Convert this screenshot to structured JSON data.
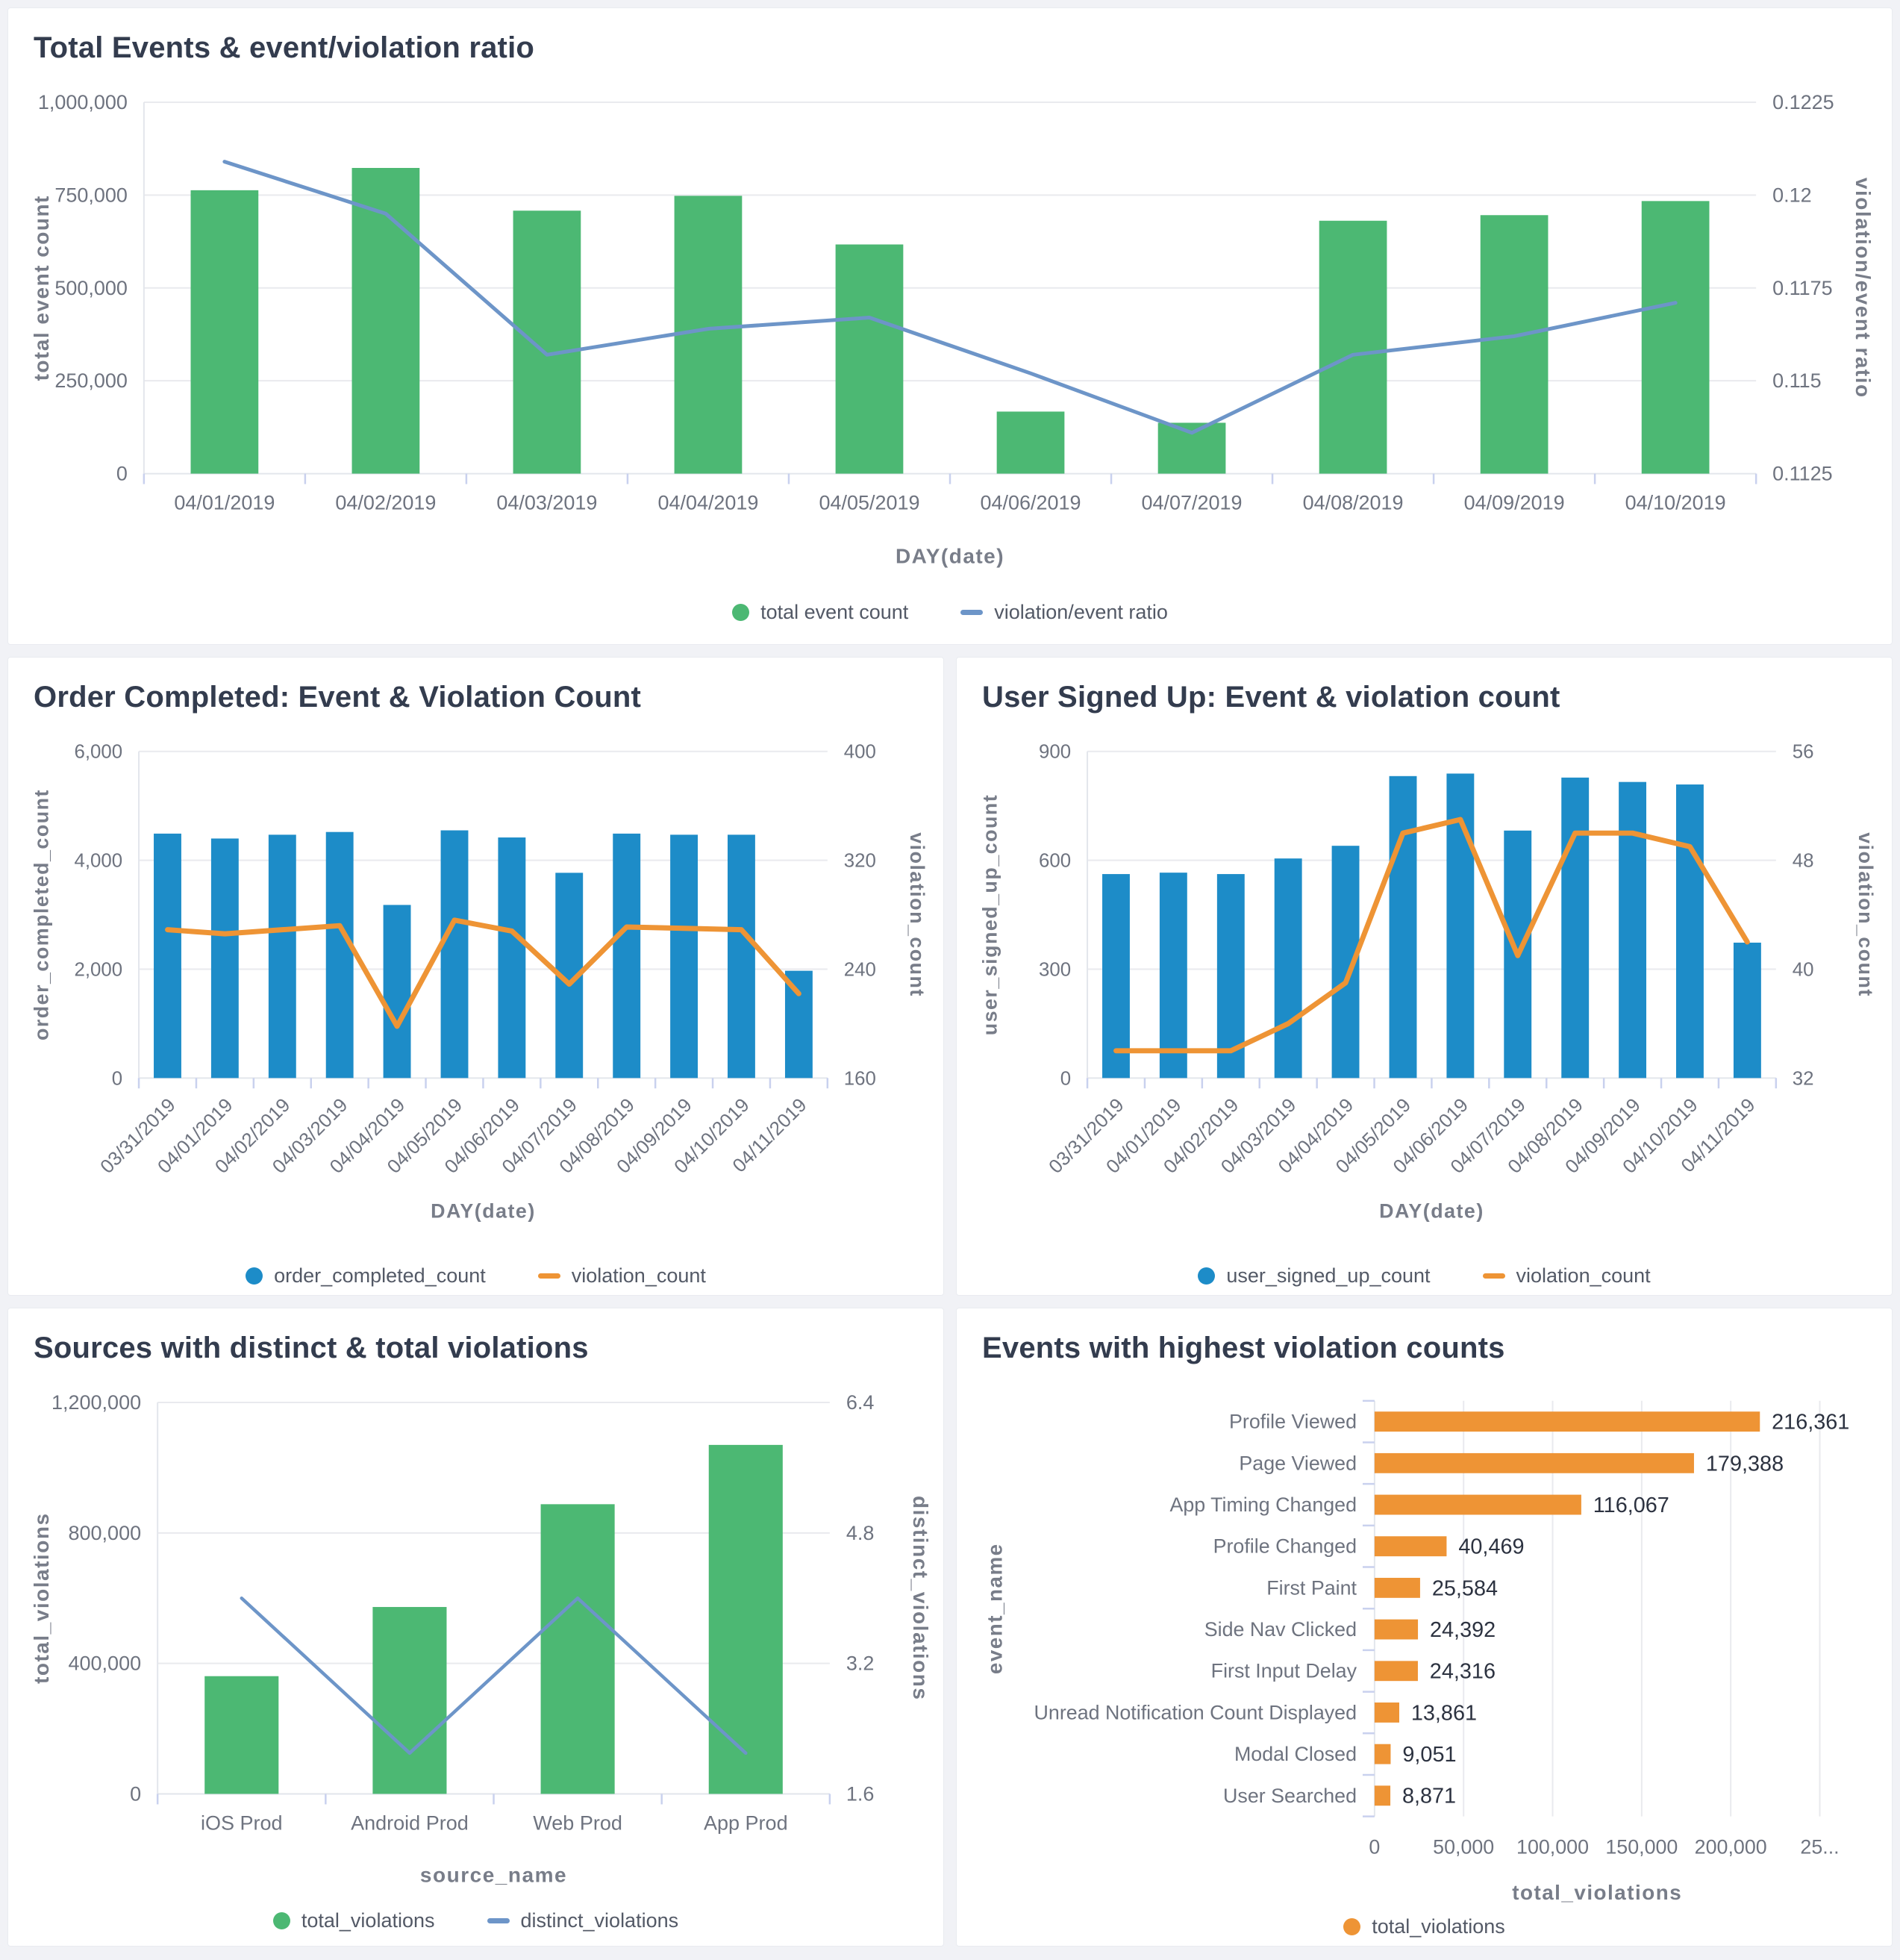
{
  "colors": {
    "green": "#4cb873",
    "blue_bar": "#1d8cc8",
    "orange": "#ee9435",
    "steel_line": "#6d95c8",
    "title": "#333c4e",
    "tick": "#6e737f",
    "axis_title": "#787d89",
    "grid": "#e9eaee",
    "axis_line": "#e3e6ec",
    "tick_mark": "#c9d1ee",
    "value_label": "#2c3240",
    "legend_text": "#535966",
    "panel_bg": "#ffffff",
    "page_bg": "#f1f2f6"
  },
  "chart_data": [
    {
      "type": "bar+line",
      "title": "Total Events & event/violation ratio",
      "xlabel": "DAY(date)",
      "categories": [
        "04/01/2019",
        "04/02/2019",
        "04/03/2019",
        "04/04/2019",
        "04/05/2019",
        "04/06/2019",
        "04/07/2019",
        "04/08/2019",
        "04/09/2019",
        "04/10/2019"
      ],
      "bar": {
        "name": "total event count",
        "color_key": "green",
        "values": [
          763000,
          823000,
          708000,
          748000,
          617000,
          167000,
          137000,
          681000,
          696000,
          734000
        ],
        "axis": {
          "label": "total event count",
          "ticks": [
            0,
            250000,
            500000,
            750000,
            1000000
          ],
          "max": 1000000,
          "format": "number"
        }
      },
      "line": {
        "name": "violation/event ratio",
        "color_key": "steel_line",
        "values": [
          0.1209,
          0.1195,
          0.1157,
          0.1164,
          0.1167,
          0.1152,
          0.1136,
          0.1157,
          0.1162,
          0.1171
        ],
        "axis": {
          "label": "violation/event ratio",
          "ticks": [
            0.1125,
            0.115,
            0.1175,
            0.12,
            0.1225
          ],
          "format": "raw"
        }
      },
      "rotate_x_labels": false,
      "grid": true,
      "legend_position": "bottom"
    },
    {
      "type": "bar+line",
      "title": "Order Completed: Event & Violation Count",
      "xlabel": "DAY(date)",
      "categories": [
        "03/31/2019",
        "04/01/2019",
        "04/02/2019",
        "04/03/2019",
        "04/04/2019",
        "04/05/2019",
        "04/06/2019",
        "04/07/2019",
        "04/08/2019",
        "04/09/2019",
        "04/10/2019",
        "04/11/2019"
      ],
      "bar": {
        "name": "order_completed_count",
        "color_key": "blue_bar",
        "values": [
          4490,
          4400,
          4470,
          4520,
          3180,
          4550,
          4420,
          3770,
          4490,
          4470,
          4470,
          1970
        ],
        "axis": {
          "label": "order_completed_count",
          "ticks": [
            0,
            2000,
            4000,
            6000
          ],
          "max": 6000,
          "format": "number"
        }
      },
      "line": {
        "name": "violation_count",
        "color_key": "orange",
        "values": [
          269,
          266,
          269,
          272,
          198,
          276,
          268,
          229,
          271,
          270,
          269,
          222
        ],
        "axis": {
          "label": "violation_count",
          "ticks": [
            160,
            240,
            320,
            400
          ],
          "format": "number"
        }
      },
      "rotate_x_labels": true,
      "grid": true,
      "legend_position": "bottom"
    },
    {
      "type": "bar+line",
      "title": "User Signed Up: Event & violation count",
      "xlabel": "DAY(date)",
      "categories": [
        "03/31/2019",
        "04/01/2019",
        "04/02/2019",
        "04/03/2019",
        "04/04/2019",
        "04/05/2019",
        "04/06/2019",
        "04/07/2019",
        "04/08/2019",
        "04/09/2019",
        "04/10/2019",
        "04/11/2019"
      ],
      "bar": {
        "name": "user_signed_up_count",
        "color_key": "blue_bar",
        "values": [
          562,
          566,
          562,
          605,
          640,
          832,
          839,
          682,
          828,
          816,
          809,
          373
        ],
        "axis": {
          "label": "user_signed_up_count",
          "ticks": [
            0,
            300,
            600,
            900
          ],
          "max": 900,
          "format": "number"
        }
      },
      "line": {
        "name": "violation_count",
        "color_key": "orange",
        "values": [
          34,
          34,
          34,
          36,
          39,
          50,
          51,
          41,
          50,
          50,
          49,
          42
        ],
        "axis": {
          "label": "violation_count",
          "ticks": [
            32,
            40,
            48,
            56
          ],
          "format": "number"
        }
      },
      "rotate_x_labels": true,
      "grid": true,
      "legend_position": "bottom"
    },
    {
      "type": "bar+line",
      "title": "Sources with distinct & total violations",
      "xlabel": "source_name",
      "categories": [
        "iOS Prod",
        "Android Prod",
        "Web Prod",
        "App Prod"
      ],
      "bar": {
        "name": "total_violations",
        "color_key": "green",
        "values": [
          361000,
          573000,
          888000,
          1070000
        ],
        "axis": {
          "label": "total_violations",
          "ticks": [
            0,
            400000,
            800000,
            1200000
          ],
          "max": 1200000,
          "format": "number"
        }
      },
      "line": {
        "name": "distinct_violations",
        "color_key": "steel_line",
        "values": [
          4.0,
          2.1,
          4.0,
          2.1
        ],
        "axis": {
          "label": "distinct_violations",
          "ticks": [
            1.6,
            3.2,
            4.8,
            6.4
          ],
          "format": "raw"
        }
      },
      "rotate_x_labels": false,
      "grid": true,
      "legend_position": "bottom"
    },
    {
      "type": "hbar",
      "title": "Events with highest violation counts",
      "xlabel": "total_violations",
      "ylabel": "event_name",
      "series_name": "total_violations",
      "color_key": "orange",
      "categories": [
        "Profile Viewed",
        "Page Viewed",
        "App Timing Changed",
        "Profile Changed",
        "First Paint",
        "Side Nav Clicked",
        "First Input Delay",
        "Unread Notification Count Displayed",
        "Modal Closed",
        "User Searched"
      ],
      "values": [
        216361,
        179388,
        116067,
        40469,
        25584,
        24392,
        24316,
        13861,
        9051,
        8871
      ],
      "value_labels": [
        "216,361",
        "179,388",
        "116,067",
        "40,469",
        "25,584",
        "24,392",
        "24,316",
        "13,861",
        "9,051",
        "8,871"
      ],
      "x_ticks": [
        0,
        50000,
        100000,
        150000,
        200000,
        250000
      ],
      "x_tick_labels": [
        "0",
        "50,000",
        "100,000",
        "150,000",
        "200,000",
        "25..."
      ],
      "xlim": [
        0,
        250000
      ],
      "grid": true,
      "legend_position": "bottom"
    }
  ]
}
